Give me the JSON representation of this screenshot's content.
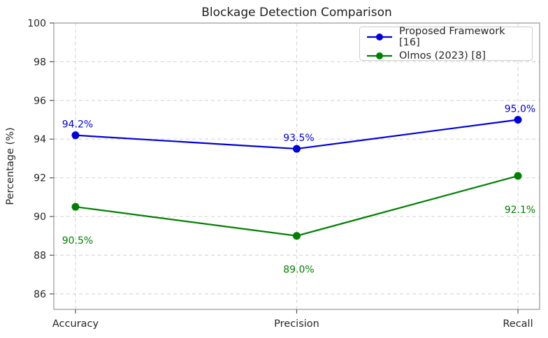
{
  "chart_data": {
    "type": "line",
    "title": "Blockage Detection Comparison",
    "xlabel": "",
    "ylabel": "Percentage (%)",
    "categories": [
      "Accuracy",
      "Precision",
      "Recall"
    ],
    "yticks": [
      86,
      88,
      90,
      92,
      94,
      96,
      98,
      100
    ],
    "ylim": [
      85.2,
      100
    ],
    "grid": true,
    "grid_style": "dashed",
    "legend_position": "upper right",
    "series": [
      {
        "name": "Proposed Framework [16]",
        "color": "#0000dd",
        "values": [
          94.2,
          93.5,
          95.0
        ],
        "point_labels": [
          "94.2%",
          "93.5%",
          "95.0%"
        ],
        "label_position": "above"
      },
      {
        "name": "Olmos (2023) [8]",
        "color": "#008000",
        "values": [
          90.5,
          89.0,
          92.1
        ],
        "point_labels": [
          "90.5%",
          "89.0%",
          "92.1%"
        ],
        "label_position": "below"
      }
    ]
  }
}
